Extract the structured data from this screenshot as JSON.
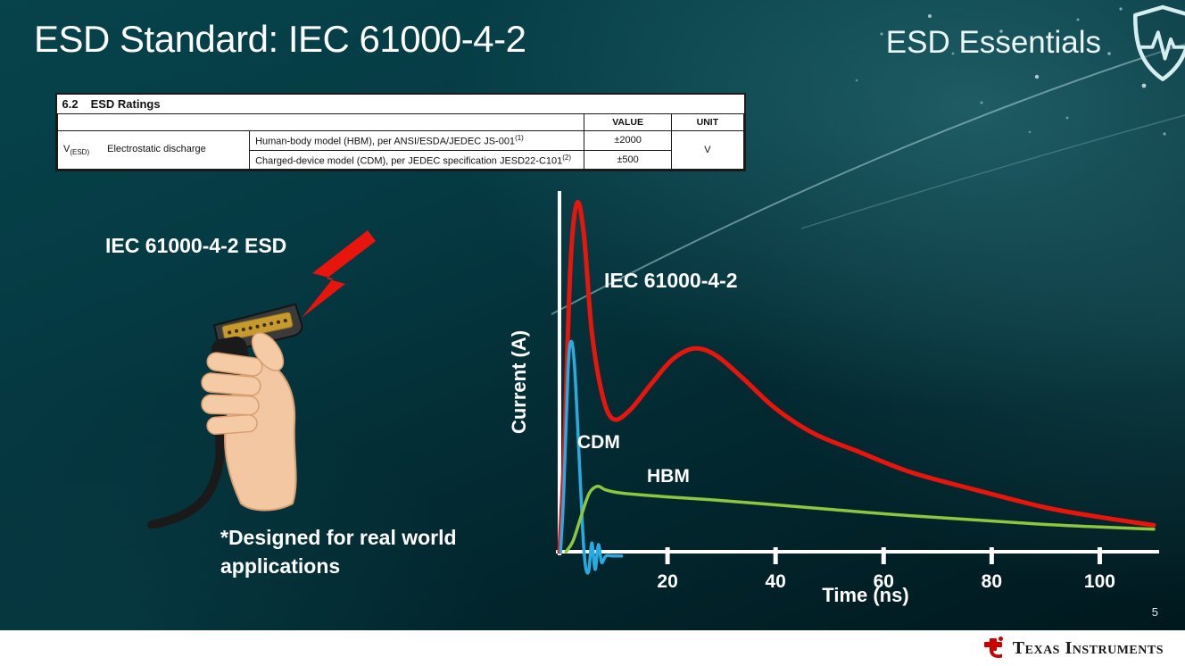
{
  "slide": {
    "title": "ESD Standard: IEC 61000-4-2",
    "series_brand": "ESD Essentials",
    "illustration_label": "IEC 61000-4-2 ESD",
    "footnote": "*Designed for real world applications",
    "page_number": "5"
  },
  "table": {
    "section_number": "6.2",
    "section_title": "ESD Ratings",
    "headers": {
      "value": "VALUE",
      "unit": "UNIT"
    },
    "symbol": "V",
    "symbol_sub": "(ESD)",
    "parameter": "Electrostatic discharge",
    "rows": [
      {
        "description": "Human-body model (HBM), per ANSI/ESDA/JEDEC JS-001",
        "ref": "(1)",
        "value": "±2000"
      },
      {
        "description": "Charged-device model (CDM), per JEDEC specification JESD22-C101",
        "ref": "(2)",
        "value": "±500"
      }
    ],
    "unit": "V"
  },
  "chart_data": {
    "type": "line",
    "title": "",
    "xlabel": "Time (ns)",
    "ylabel": "Current (A)",
    "x_max": 110,
    "x_ticks": [
      20,
      40,
      60,
      80,
      100
    ],
    "y_ticks": [],
    "y_normalization": "peak of IEC 61000-4-2 waveform = 1.0 (y axis unlabeled in figure)",
    "series": [
      {
        "name": "IEC 61000-4-2",
        "color": "#e8150d",
        "width": 5,
        "points": [
          [
            0,
            0
          ],
          [
            0.8,
            0.25
          ],
          [
            2,
            0.8
          ],
          [
            3.2,
            0.985
          ],
          [
            4.5,
            0.9
          ],
          [
            6,
            0.62
          ],
          [
            8,
            0.44
          ],
          [
            10,
            0.375
          ],
          [
            13,
            0.4
          ],
          [
            17,
            0.475
          ],
          [
            21,
            0.545
          ],
          [
            25,
            0.575
          ],
          [
            29,
            0.555
          ],
          [
            34,
            0.49
          ],
          [
            40,
            0.405
          ],
          [
            47,
            0.335
          ],
          [
            55,
            0.285
          ],
          [
            65,
            0.225
          ],
          [
            77,
            0.175
          ],
          [
            90,
            0.125
          ],
          [
            100,
            0.098
          ],
          [
            110,
            0.075
          ]
        ]
      },
      {
        "name": "CDM",
        "color": "#29abe2",
        "width": 3.5,
        "points": [
          [
            0.2,
            0
          ],
          [
            0.8,
            0.17
          ],
          [
            1.6,
            0.52
          ],
          [
            2.2,
            0.595
          ],
          [
            2.8,
            0.52
          ],
          [
            3.6,
            0.28
          ],
          [
            4.3,
            0.06
          ],
          [
            4.8,
            -0.04
          ],
          [
            5.4,
            -0.055
          ],
          [
            6,
            0.025
          ],
          [
            6.6,
            -0.05
          ],
          [
            7.2,
            0.02
          ],
          [
            7.8,
            -0.03
          ],
          [
            8.6,
            -0.012
          ],
          [
            10,
            -0.012
          ],
          [
            11.5,
            -0.012
          ]
        ]
      },
      {
        "name": "HBM",
        "color": "#8dc63f",
        "width": 3.5,
        "points": [
          [
            1.2,
            0
          ],
          [
            2.5,
            0.03
          ],
          [
            4,
            0.1
          ],
          [
            5.5,
            0.165
          ],
          [
            7,
            0.185
          ],
          [
            8.5,
            0.175
          ],
          [
            10.5,
            0.168
          ],
          [
            14,
            0.162
          ],
          [
            20,
            0.155
          ],
          [
            28,
            0.147
          ],
          [
            38,
            0.135
          ],
          [
            50,
            0.12
          ],
          [
            62,
            0.105
          ],
          [
            75,
            0.092
          ],
          [
            88,
            0.079
          ],
          [
            100,
            0.07
          ],
          [
            110,
            0.064
          ]
        ]
      }
    ]
  },
  "footer": {
    "brand": "Texas Instruments"
  },
  "icons": {
    "brand_shield": "esd-shield-pulse-icon",
    "footer_logo": "texas-instruments-logo",
    "lightning": "esd-lightning-bolt",
    "connector": "hdmi-connector-in-hand"
  },
  "colors": {
    "background_teal": "#063e46",
    "iec_red": "#e8150d",
    "cdm_blue": "#29abe2",
    "hbm_green": "#8dc63f",
    "footer_bg": "#ffffff"
  }
}
